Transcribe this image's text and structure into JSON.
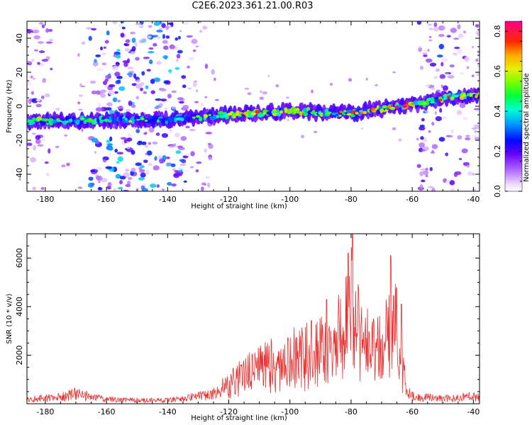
{
  "title": "C2E6.2023.361.21.00.R03",
  "chart_data": [
    {
      "type": "heatmap",
      "xlabel": "Height of straight line (km)",
      "ylabel": "Frequency (Hz)",
      "xlim": [
        -186,
        -38
      ],
      "ylim": [
        -50,
        50
      ],
      "x_ticks": [
        -180,
        -160,
        -140,
        -120,
        -100,
        -80,
        -60,
        -40
      ],
      "y_ticks": [
        -40,
        -20,
        0,
        20,
        40
      ],
      "colorbar": {
        "label": "Normalized spectral amplitude",
        "range": [
          0,
          0.85
        ],
        "ticks": [
          "0.0",
          "0.2",
          "0.4",
          "0.6",
          "0.8"
        ]
      },
      "ridge": {
        "x": [
          -186,
          -160,
          -140,
          -120,
          -100,
          -80,
          -60,
          -56,
          -50,
          -40
        ],
        "y": [
          -9,
          -8,
          -8,
          -5,
          -3,
          -4,
          1,
          2,
          5,
          6
        ],
        "peak_amplitude": [
          0.45,
          0.3,
          0.15,
          0.45,
          0.5,
          0.5,
          0.8,
          0.3,
          0.5,
          0.5
        ]
      },
      "noise_bands": [
        {
          "x": [
            -186,
            -178
          ],
          "level": 0.15
        },
        {
          "x": [
            -166,
            -134
          ],
          "level": 0.25
        },
        {
          "x": [
            -134,
            -125
          ],
          "level": 0.1
        },
        {
          "x": [
            -58,
            -50
          ],
          "level": 0.2
        },
        {
          "x": [
            -50,
            -38
          ],
          "level": 0.12
        }
      ]
    },
    {
      "type": "line",
      "xlabel": "Height of straight line (km)",
      "ylabel": "SNR (10 * v/v)",
      "xlim": [
        -186,
        -38
      ],
      "ylim": [
        0,
        7000
      ],
      "x_ticks": [
        -180,
        -160,
        -140,
        -120,
        -100,
        -80,
        -60,
        -40
      ],
      "y_ticks": [
        2000,
        4000,
        6000
      ],
      "series_color": "#e83030",
      "envelope": {
        "x": [
          -186,
          -175,
          -170,
          -165,
          -160,
          -150,
          -140,
          -130,
          -125,
          -120,
          -115,
          -110,
          -105,
          -100,
          -95,
          -90,
          -85,
          -82,
          -80,
          -78,
          -75,
          -70,
          -67,
          -64,
          -62,
          -60,
          -50,
          -40,
          -38
        ],
        "y": [
          300,
          450,
          700,
          500,
          300,
          250,
          250,
          500,
          700,
          1300,
          2000,
          2400,
          2800,
          3100,
          3300,
          3800,
          4300,
          5000,
          7000,
          5200,
          4200,
          3800,
          6000,
          4200,
          900,
          500,
          350,
          500,
          400
        ]
      },
      "peaks": [
        {
          "x": -79.5,
          "y": 7000
        },
        {
          "x": -81,
          "y": 6200
        },
        {
          "x": -67,
          "y": 6100
        },
        {
          "x": -88,
          "y": 4300
        },
        {
          "x": -63.5,
          "y": 4100
        }
      ]
    }
  ]
}
